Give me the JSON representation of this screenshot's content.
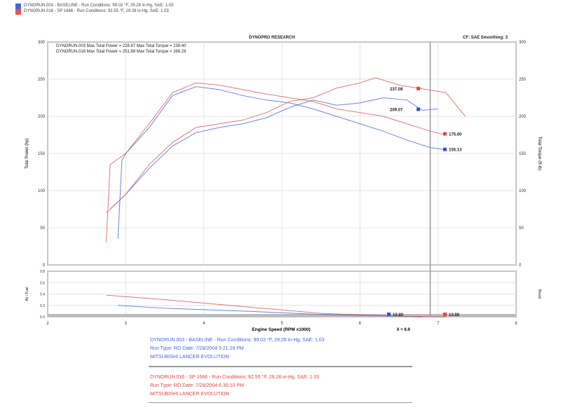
{
  "header": {
    "run_lines": [
      {
        "text": "DYNORUN.003 - BASELINE  -  Run Conditions: 99.02 °F, 29.28 in-Hg, SAE: 1.03",
        "color": "#3355cc"
      },
      {
        "text": "DYNORUN.016 - SP 1666  -  Run Conditions: 92.55 °F, 29.28 in-Hg, SAE: 1.03",
        "color": "#e04444"
      }
    ],
    "title": "DYNOPRO RESEARCH",
    "cf_label": "CF: SAE  Smoothing: 3"
  },
  "legend": [
    {
      "text": "DYNORUN.003 Max Total Power = 228.87    Max Total Torque = 236.40",
      "color": "#3355cc"
    },
    {
      "text": "DYNORUN.016 Max Total Power = 251.88    Max Total Torque = 266.28",
      "color": "#e04444"
    }
  ],
  "footer": {
    "blue": [
      "DYNORUN.003 - BASELINE  -  Run Conditions: 99.02 °F, 29.28 in-Hg, SAE: 1.03",
      "Run Type: RO  Date: 7/28/2004 5:21:28 PM",
      "MITSUBISHI LANCER EVOLUTION"
    ],
    "red": [
      "DYNORUN.016 - SP 1666  -  Run Conditions: 92.55 °F, 29.28 in-Hg, SAE: 1.03",
      "Run Type: RO  Date: 7/28/2004 6:30:10 PM",
      "MITSUBISHI LANCER EVOLUTION"
    ]
  },
  "chart_data": {
    "type": "line",
    "xlabel": "Engine Speed (RPM x1000)",
    "ylabel": "Total Power (hp)",
    "y2label": "Total Torque (ft-lb)",
    "lower_ylabel": "Air / Fuel",
    "lower_y2label": "Boost",
    "xlim": [
      2,
      8
    ],
    "ylim": [
      0,
      300
    ],
    "xticks": [
      "2",
      "3",
      "4",
      "5",
      "6",
      "7",
      "8"
    ],
    "yticks": [
      "0",
      "50",
      "100",
      "150",
      "200",
      "250",
      "300"
    ],
    "lower_yticks": [
      "0.0",
      "0.2",
      "0.4",
      "0.6",
      "0.8"
    ],
    "lower_ylim": [
      0,
      0.8
    ],
    "cursor_x": 6.9,
    "cursor_label": "X = 6.9",
    "grid": true,
    "series": [
      {
        "color": "#4466dd",
        "kind": "power",
        "x": [
          2.9,
          2.95,
          3.0,
          3.3,
          3.6,
          3.9,
          4.2,
          4.5,
          4.8,
          5.1,
          5.4,
          5.7,
          6.0,
          6.3,
          6.6,
          6.9,
          7.1
        ],
        "y": [
          35,
          140,
          150,
          185,
          228,
          240,
          236,
          228,
          222,
          218,
          210,
          200,
          190,
          180,
          168,
          158,
          155
        ]
      },
      {
        "color": "#e05555",
        "kind": "power",
        "x": [
          2.75,
          2.8,
          3.0,
          3.3,
          3.6,
          3.9,
          4.2,
          4.5,
          4.8,
          5.1,
          5.4,
          5.7,
          6.0,
          6.3,
          6.6,
          6.9,
          7.1
        ],
        "y": [
          30,
          135,
          150,
          190,
          232,
          245,
          242,
          236,
          230,
          225,
          220,
          210,
          205,
          200,
          190,
          180,
          175
        ]
      },
      {
        "color": "#4466dd",
        "kind": "torque",
        "x": [
          2.8,
          3.0,
          3.3,
          3.6,
          3.9,
          4.2,
          4.5,
          4.8,
          5.1,
          5.4,
          5.7,
          6.0,
          6.3,
          6.6,
          6.8,
          7.0
        ],
        "y": [
          75,
          95,
          130,
          160,
          178,
          185,
          190,
          198,
          212,
          222,
          215,
          218,
          225,
          222,
          208,
          210
        ]
      },
      {
        "color": "#e05555",
        "kind": "torque",
        "x": [
          2.75,
          3.0,
          3.3,
          3.6,
          3.9,
          4.2,
          4.5,
          4.8,
          5.1,
          5.4,
          5.7,
          6.0,
          6.2,
          6.5,
          6.8,
          7.1,
          7.35
        ],
        "y": [
          70,
          95,
          135,
          165,
          185,
          190,
          195,
          205,
          220,
          225,
          238,
          245,
          252,
          242,
          237,
          232,
          200
        ]
      },
      {
        "color": "#4466dd",
        "kind": "afr",
        "x": [
          2.9,
          3.5,
          4.5,
          5.5,
          6.5,
          6.8
        ],
        "y": [
          0.2,
          0.15,
          0.1,
          0.04,
          0.01,
          0.0
        ]
      },
      {
        "color": "#e05555",
        "kind": "afr",
        "x": [
          2.75,
          3.5,
          4.5,
          5.5,
          6.5,
          7.1
        ],
        "y": [
          0.38,
          0.3,
          0.18,
          0.06,
          0.01,
          0.0
        ]
      }
    ],
    "cursor_values": [
      {
        "text": "237.08",
        "color": "#e04444",
        "kind": "torque",
        "y": 237
      },
      {
        "text": "209.07",
        "color": "#3355cc",
        "kind": "torque",
        "y": 209
      },
      {
        "text": "175.60",
        "color": "#e04444",
        "kind": "power",
        "y": 176
      },
      {
        "text": "155.13",
        "color": "#3355cc",
        "kind": "power",
        "y": 155
      },
      {
        "text": "10.80",
        "color": "#3355cc",
        "kind": "afr"
      },
      {
        "text": "13.08",
        "color": "#e04444",
        "kind": "afr"
      }
    ]
  }
}
